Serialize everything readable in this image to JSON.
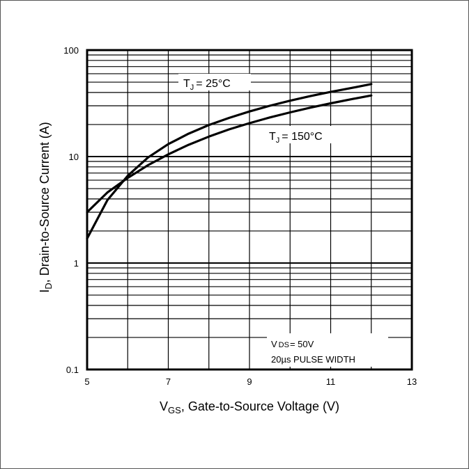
{
  "chart_data": {
    "type": "line",
    "xlabel": {
      "main": "V",
      "sub": "GS",
      "rest": ", Gate-to-Source Voltage (V)"
    },
    "ylabel": {
      "main": "I",
      "sub": "D",
      "rest": ",  Drain-to-Source Current (A)"
    },
    "x_ticks": [
      "5",
      "7",
      "9",
      "11",
      "13"
    ],
    "y_ticks": [
      "0.1",
      "1",
      "10",
      "100"
    ],
    "xlim": [
      5,
      13
    ],
    "ylim": [
      0.1,
      100
    ],
    "yscale": "log",
    "grid": true,
    "series": [
      {
        "name": "TJ = 25°C",
        "x": [
          5,
          5.5,
          6,
          6.5,
          7,
          7.5,
          8,
          8.5,
          9,
          9.5,
          10,
          10.5,
          11,
          11.5,
          12
        ],
        "y": [
          1.7,
          3.9,
          6.6,
          9.8,
          13.1,
          16.4,
          19.8,
          23.1,
          26.5,
          30,
          33.5,
          37,
          40.5,
          44,
          48
        ]
      },
      {
        "name": "TJ = 150°C",
        "x": [
          5,
          5.5,
          6,
          6.5,
          7,
          7.5,
          8,
          8.5,
          9,
          9.5,
          10,
          10.5,
          11,
          11.5,
          12
        ],
        "y": [
          3.0,
          4.6,
          6.3,
          8.3,
          10.5,
          12.9,
          15.4,
          18.0,
          20.6,
          23.3,
          26.0,
          28.8,
          31.6,
          34.5,
          37.5
        ]
      }
    ],
    "annotations": {
      "tj25": {
        "main": "T",
        "sub": "J",
        "rest": "= 25°C"
      },
      "tj150": {
        "main": "T",
        "sub": "J",
        "rest": "= 150°C"
      },
      "conditions": {
        "line1_main": "V",
        "line1_sub": "DS",
        "line1_rest": "= 50V",
        "line2": "20µs PULSE WIDTH"
      }
    }
  }
}
